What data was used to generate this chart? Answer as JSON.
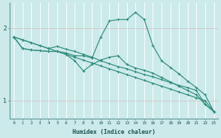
{
  "xlabel": "Humidex (Indice chaleur)",
  "bg_color": "#cceaea",
  "grid_color": "#b8d8d8",
  "line_color": "#2e8b7a",
  "xlim": [
    -0.5,
    23.5
  ],
  "ylim": [
    0.75,
    2.35
  ],
  "xticks": [
    0,
    1,
    2,
    3,
    4,
    5,
    6,
    7,
    8,
    9,
    10,
    11,
    12,
    13,
    14,
    15,
    16,
    17,
    18,
    19,
    20,
    21,
    22,
    23
  ],
  "yticks": [
    1,
    2
  ],
  "curve1_x": [
    0,
    1,
    2,
    3,
    4,
    5,
    6,
    7,
    8,
    9,
    10,
    11,
    12,
    13,
    14,
    15,
    16,
    17,
    18,
    19,
    20,
    21,
    22,
    23
  ],
  "curve1_y": [
    1.88,
    1.84,
    1.8,
    1.76,
    1.72,
    1.68,
    1.64,
    1.6,
    1.56,
    1.52,
    1.48,
    1.44,
    1.4,
    1.36,
    1.32,
    1.28,
    1.24,
    1.2,
    1.16,
    1.12,
    1.08,
    1.04,
    1.0,
    0.85
  ],
  "curve2_x": [
    0,
    1,
    2,
    3,
    4,
    5,
    6,
    7,
    8,
    9,
    10,
    11,
    12,
    13,
    14,
    15,
    16,
    17,
    18,
    19,
    20,
    21,
    22,
    23
  ],
  "curve2_y": [
    1.88,
    1.72,
    1.7,
    1.69,
    1.68,
    1.68,
    1.66,
    1.62,
    1.62,
    1.59,
    1.88,
    2.1,
    2.12,
    2.12,
    2.22,
    2.12,
    1.76,
    1.55,
    1.46,
    1.37,
    1.27,
    1.18,
    1.08,
    0.85
  ],
  "curve3_x": [
    0,
    1,
    2,
    3,
    4,
    5,
    6,
    7,
    8,
    9,
    10,
    11,
    12,
    13,
    14,
    15,
    16,
    17,
    18,
    19,
    20,
    21,
    22,
    23
  ],
  "curve3_y": [
    1.88,
    1.72,
    1.7,
    1.69,
    1.68,
    1.68,
    1.64,
    1.55,
    1.41,
    1.5,
    1.56,
    1.6,
    1.62,
    1.5,
    1.45,
    1.42,
    1.38,
    1.32,
    1.26,
    1.2,
    1.14,
    1.08,
    0.95,
    0.85
  ],
  "curve4_x": [
    0,
    1,
    2,
    3,
    4,
    5,
    6,
    7,
    8,
    9,
    10,
    11,
    12,
    13,
    14,
    15,
    16,
    17,
    18,
    19,
    20,
    21,
    22,
    23
  ],
  "curve4_y": [
    1.88,
    1.84,
    1.8,
    1.76,
    1.72,
    1.75,
    1.71,
    1.68,
    1.64,
    1.6,
    1.55,
    1.51,
    1.47,
    1.44,
    1.4,
    1.36,
    1.33,
    1.29,
    1.25,
    1.21,
    1.18,
    1.14,
    0.95,
    0.85
  ]
}
